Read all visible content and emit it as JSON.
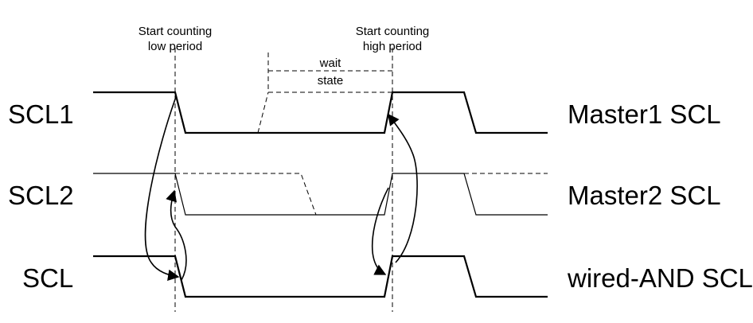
{
  "annotations": {
    "start_low": [
      "Start counting",
      "low period"
    ],
    "start_high": [
      "Start counting",
      "high period"
    ],
    "wait_state": [
      "wait",
      "state"
    ]
  },
  "signals": [
    {
      "left_label": "SCL1",
      "right_label": "Master1 SCL"
    },
    {
      "left_label": "SCL2",
      "right_label": "Master2 SCL"
    },
    {
      "left_label": "SCL",
      "right_label": "wired-AND SCL"
    }
  ]
}
